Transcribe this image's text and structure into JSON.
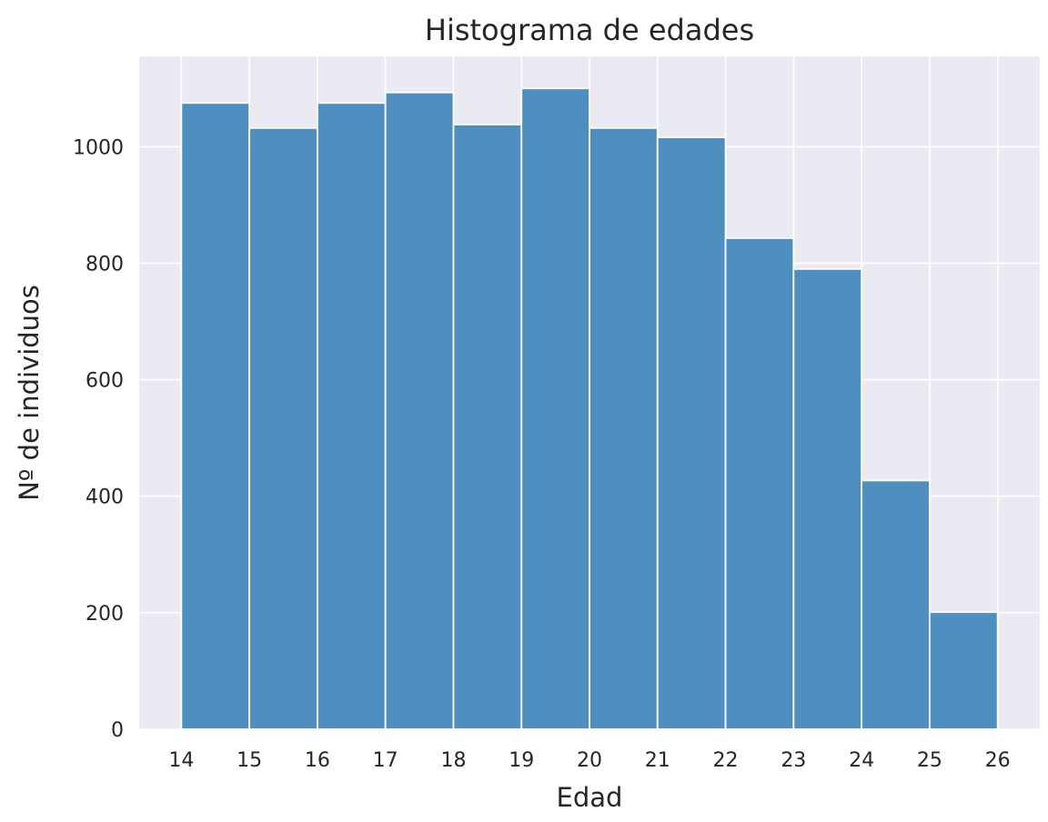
{
  "chart_data": {
    "type": "bar",
    "title": "Histograma de edades",
    "xlabel": "Edad",
    "ylabel": "Nº de individuos",
    "bin_edges": [
      14,
      15,
      16,
      17,
      18,
      19,
      20,
      21,
      22,
      23,
      24,
      25,
      26
    ],
    "values": [
      1075,
      1032,
      1075,
      1093,
      1038,
      1100,
      1032,
      1016,
      843,
      790,
      427,
      201
    ],
    "xticks": [
      "14",
      "15",
      "16",
      "17",
      "18",
      "19",
      "20",
      "21",
      "22",
      "23",
      "24",
      "25",
      "26"
    ],
    "yticks": [
      "0",
      "200",
      "400",
      "600",
      "800",
      "1000"
    ],
    "xlim": [
      13.38,
      26.62
    ],
    "ylim": [
      0,
      1155
    ],
    "grid": true,
    "colors": {
      "bar_fill": "#4f8fbf",
      "bar_edge": "#ffffff",
      "plot_background": "#eaeaf2",
      "grid": "#ffffff",
      "text": "#262626"
    }
  }
}
